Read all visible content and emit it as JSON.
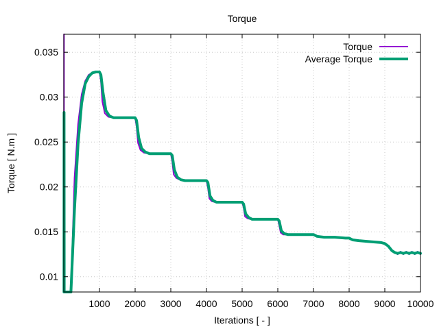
{
  "chart_data": {
    "type": "line",
    "title": "Torque",
    "xlabel": "Iterations [ - ]",
    "ylabel": "Torque [ N.m ]",
    "xlim": [
      0,
      10000
    ],
    "ylim": [
      0.0083,
      0.037
    ],
    "xticks": [
      1000,
      2000,
      3000,
      4000,
      5000,
      6000,
      7000,
      8000,
      9000,
      10000
    ],
    "xtick_labels": [
      "1000",
      "2000",
      "3000",
      "4000",
      "5000",
      "6000",
      "7000",
      "8000",
      "9000",
      "10000"
    ],
    "yticks": [
      0.01,
      0.015,
      0.02,
      0.025,
      0.03,
      0.035
    ],
    "ytick_labels": [
      "0.01",
      "0.015",
      "0.02",
      "0.025",
      "0.03",
      "0.035"
    ],
    "grid": true,
    "legend_position": "top-right",
    "series": [
      {
        "name": "Torque",
        "color": "#9400d3",
        "line_width": 2,
        "x": [
          5,
          6,
          10,
          14,
          20,
          40,
          100,
          150,
          200,
          300,
          400,
          500,
          600,
          700,
          800,
          900,
          1000,
          1040,
          1080,
          1150,
          1250,
          1400,
          1600,
          1800,
          2000,
          2040,
          2080,
          2150,
          2250,
          2400,
          2600,
          2800,
          3000,
          3040,
          3080,
          3150,
          3250,
          3400,
          3600,
          3800,
          4000,
          4040,
          4080,
          4150,
          4250,
          4400,
          4600,
          4800,
          5000,
          5040,
          5080,
          5150,
          5250,
          5400,
          5600,
          5800,
          6000,
          6040,
          6080,
          6150,
          6250,
          6400,
          6600,
          6800,
          7000,
          7100,
          7300,
          7600,
          7900,
          8000,
          8100,
          8300,
          8600,
          8900,
          9000,
          9100,
          9200,
          9280,
          9360,
          9440,
          9520,
          9600,
          9680,
          9760,
          9840,
          9920,
          10000
        ],
        "y": [
          0.037,
          0.009,
          0.028,
          0.0083,
          0.0083,
          0.0083,
          0.0083,
          0.0083,
          0.0083,
          0.021,
          0.027,
          0.0303,
          0.0318,
          0.0325,
          0.0327,
          0.0328,
          0.0328,
          0.0318,
          0.0295,
          0.0282,
          0.0278,
          0.0277,
          0.0277,
          0.0277,
          0.0277,
          0.0267,
          0.0249,
          0.0241,
          0.0238,
          0.0237,
          0.0237,
          0.0237,
          0.0237,
          0.0228,
          0.0214,
          0.021,
          0.0208,
          0.0207,
          0.0207,
          0.0207,
          0.0207,
          0.0199,
          0.0187,
          0.0184,
          0.0183,
          0.0183,
          0.0183,
          0.0183,
          0.0183,
          0.0177,
          0.0167,
          0.0165,
          0.0164,
          0.0164,
          0.0164,
          0.0164,
          0.0164,
          0.0157,
          0.0149,
          0.0147,
          0.0147,
          0.0147,
          0.0147,
          0.0147,
          0.0147,
          0.0145,
          0.0144,
          0.0144,
          0.0143,
          0.0143,
          0.0141,
          0.014,
          0.0139,
          0.0138,
          0.0137,
          0.0134,
          0.0129,
          0.0127,
          0.0125,
          0.0128,
          0.0125,
          0.0128,
          0.0125,
          0.0128,
          0.0125,
          0.0128,
          0.0125
        ]
      },
      {
        "name": "Average Torque",
        "color": "#009e73",
        "line_width": 4,
        "x": [
          5,
          8,
          12,
          20,
          40,
          100,
          150,
          200,
          300,
          400,
          500,
          600,
          700,
          800,
          900,
          1000,
          1040,
          1100,
          1180,
          1280,
          1400,
          1600,
          1800,
          2000,
          2040,
          2100,
          2180,
          2280,
          2400,
          2600,
          2800,
          3000,
          3040,
          3100,
          3180,
          3280,
          3400,
          3600,
          3800,
          4000,
          4040,
          4100,
          4180,
          4280,
          4400,
          4600,
          4800,
          5000,
          5040,
          5100,
          5180,
          5280,
          5400,
          5600,
          5800,
          6000,
          6040,
          6100,
          6180,
          6280,
          6400,
          6600,
          6800,
          7000,
          7100,
          7300,
          7600,
          7900,
          8000,
          8100,
          8300,
          8600,
          8900,
          9000,
          9100,
          9200,
          9280,
          9360,
          9440,
          9520,
          9600,
          9680,
          9760,
          9840,
          9920,
          10000
        ],
        "y": [
          0.0083,
          0.0283,
          0.0083,
          0.0083,
          0.0083,
          0.0083,
          0.0083,
          0.0083,
          0.0175,
          0.0248,
          0.0293,
          0.0315,
          0.0323,
          0.0327,
          0.0328,
          0.0328,
          0.0325,
          0.0305,
          0.0285,
          0.0279,
          0.0277,
          0.0277,
          0.0277,
          0.0277,
          0.0274,
          0.0255,
          0.0243,
          0.0239,
          0.0237,
          0.0237,
          0.0237,
          0.0237,
          0.0235,
          0.0219,
          0.0211,
          0.0208,
          0.0207,
          0.0207,
          0.0207,
          0.0207,
          0.0205,
          0.019,
          0.0185,
          0.0183,
          0.0183,
          0.0183,
          0.0183,
          0.0183,
          0.0181,
          0.017,
          0.0166,
          0.0164,
          0.0164,
          0.0164,
          0.0164,
          0.0164,
          0.0162,
          0.0151,
          0.0148,
          0.0147,
          0.0147,
          0.0147,
          0.0147,
          0.0147,
          0.0145,
          0.0144,
          0.0144,
          0.0143,
          0.0143,
          0.0141,
          0.014,
          0.0139,
          0.0138,
          0.0137,
          0.0134,
          0.0129,
          0.0127,
          0.0126,
          0.0127,
          0.0126,
          0.0127,
          0.0126,
          0.0127,
          0.0126,
          0.0127,
          0.0126
        ]
      }
    ]
  }
}
